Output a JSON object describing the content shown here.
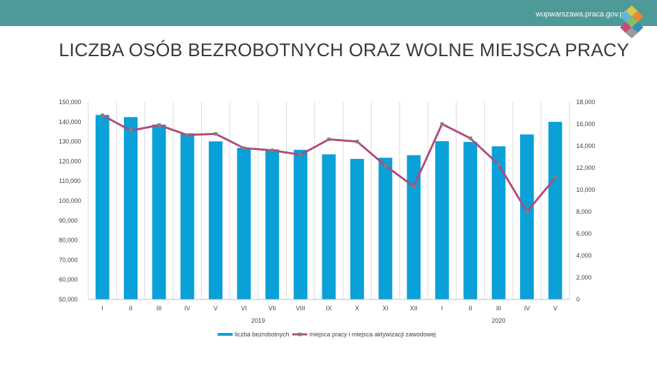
{
  "header": {
    "site_url": "wupwarszawa.praca.gov.pl"
  },
  "page_title": "LICZBA OSÓB BEZROBOTNYCH ORAZ WOLNE MIEJSCA PRACY",
  "colors": {
    "header_bg": "#4e9a98",
    "bar": "#0aa0d8",
    "line": "#b34a7c",
    "marker": "#7f7f7f",
    "grid": "#d9d9d9"
  },
  "chart_data": {
    "type": "bar",
    "categories": [
      "I",
      "II",
      "III",
      "IV",
      "V",
      "VI",
      "VII",
      "VIII",
      "IX",
      "X",
      "XI",
      "XII",
      "I",
      "II",
      "III",
      "IV",
      "V"
    ],
    "groups": [
      {
        "label": "2019",
        "from": 0,
        "to": 11
      },
      {
        "label": "2020",
        "from": 12,
        "to": 16
      }
    ],
    "series": [
      {
        "name": "liczba bezrobotnych",
        "kind": "bar",
        "axis": "left",
        "values": [
          143500,
          142400,
          138600,
          134200,
          130100,
          126800,
          126000,
          125800,
          123500,
          121200,
          121800,
          123100,
          130200,
          129800,
          127600,
          133600,
          140000
        ]
      },
      {
        "name": "miejsca pracy i miejsca aktywizacji zawodowej",
        "kind": "line",
        "axis": "right",
        "values": [
          16800,
          15400,
          15900,
          15000,
          15100,
          13800,
          13600,
          13200,
          14600,
          14400,
          12200,
          10300,
          16000,
          14700,
          12300,
          8000,
          11100
        ]
      }
    ],
    "y_left": {
      "min": 50000,
      "max": 150000,
      "step": 10000,
      "tick_labels": [
        "50,000",
        "60,000",
        "70,000",
        "80,000",
        "90,000",
        "100,000",
        "110,000",
        "120,000",
        "130,000",
        "140,000",
        "150,000"
      ]
    },
    "y_right": {
      "min": 0,
      "max": 18000,
      "step": 2000,
      "tick_labels": [
        "0",
        "2,000",
        "4,000",
        "6,000",
        "8,000",
        "10,000",
        "12,000",
        "14,000",
        "16,000",
        "18,000"
      ]
    },
    "grid": "vertical",
    "legend_position": "bottom"
  }
}
